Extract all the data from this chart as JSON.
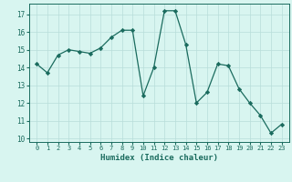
{
  "x": [
    0,
    1,
    2,
    3,
    4,
    5,
    6,
    7,
    8,
    9,
    10,
    11,
    12,
    13,
    14,
    15,
    16,
    17,
    18,
    19,
    20,
    21,
    22,
    23
  ],
  "y": [
    14.2,
    13.7,
    14.7,
    15.0,
    14.9,
    14.8,
    15.1,
    15.7,
    16.1,
    16.1,
    12.4,
    14.0,
    17.2,
    17.2,
    15.3,
    12.0,
    12.6,
    14.2,
    14.1,
    12.8,
    12.0,
    11.3,
    10.3,
    10.8
  ],
  "xlabel": "Humidex (Indice chaleur)",
  "ylim": [
    9.8,
    17.6
  ],
  "yticks": [
    10,
    11,
    12,
    13,
    14,
    15,
    16,
    17
  ],
  "xticks": [
    0,
    1,
    2,
    3,
    4,
    5,
    6,
    7,
    8,
    9,
    10,
    11,
    12,
    13,
    14,
    15,
    16,
    17,
    18,
    19,
    20,
    21,
    22,
    23
  ],
  "line_color": "#1a6b5e",
  "marker_color": "#1a6b5e",
  "bg_color": "#d8f5f0",
  "grid_color": "#b8deda",
  "tick_label_color": "#1a6b5e",
  "xlabel_color": "#1a6b5e"
}
